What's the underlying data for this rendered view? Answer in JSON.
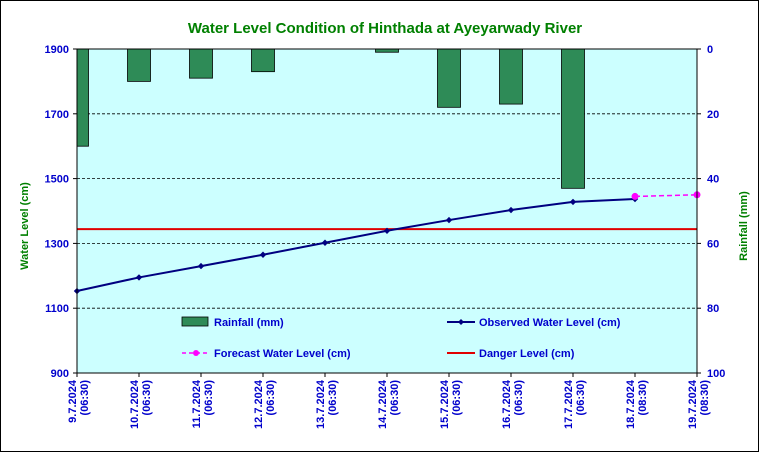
{
  "chart_data": {
    "type": "bar+line",
    "title": "Water Level Condition of Hinthada at Ayeyarwady River",
    "categories": [
      [
        "9.7.2024",
        "(06:30)"
      ],
      [
        "10.7.2024",
        "(06:30)"
      ],
      [
        "11.7.2024",
        "(06:30)"
      ],
      [
        "12.7.2024",
        "(06:30)"
      ],
      [
        "13.7.2024",
        "(06:30)"
      ],
      [
        "14.7.2024",
        "(06:30)"
      ],
      [
        "15.7.2024",
        "(06:30)"
      ],
      [
        "16.7.2024",
        "(06:30)"
      ],
      [
        "17.7.2024",
        "(06:30)"
      ],
      [
        "18.7.2024",
        "(08:30)"
      ],
      [
        "19.7.2024",
        "(08:30)"
      ]
    ],
    "left_axis": {
      "label": "Water Level (cm)",
      "min": 900,
      "max": 1900,
      "ticks": [
        900,
        1100,
        1300,
        1500,
        1700,
        1900
      ],
      "color": "#0000cc"
    },
    "right_axis": {
      "label": "Rainfall (mm)",
      "min": 0,
      "max": 100,
      "inverted": true,
      "ticks": [
        0,
        20,
        40,
        60,
        80,
        100
      ],
      "color": "#0000cc"
    },
    "series": [
      {
        "name": "Rainfall (mm)",
        "kind": "bar",
        "axis": "right",
        "values": [
          30,
          10,
          9,
          7,
          null,
          1,
          18,
          17,
          43,
          null,
          null
        ],
        "color": "#2e8b57"
      },
      {
        "name": "Observed Water Level (cm)",
        "kind": "line",
        "axis": "left",
        "values": [
          1153,
          1195,
          1230,
          1265,
          1302,
          1339,
          1372,
          1403,
          1428,
          1437,
          null
        ],
        "color": "#000080"
      },
      {
        "name": "Forecast Water Level (cm)",
        "kind": "dashed-line",
        "axis": "left",
        "values": [
          null,
          null,
          null,
          null,
          null,
          null,
          null,
          null,
          null,
          1445,
          1450
        ],
        "color": "#ff00ff"
      },
      {
        "name": "Danger Level (cm)",
        "kind": "hline",
        "axis": "left",
        "value": 1344,
        "color": "#e00000"
      }
    ],
    "legend_order": [
      "Rainfall (mm)",
      "Observed Water Level (cm)",
      "Forecast Water Level (cm)",
      "Danger Level (cm)"
    ],
    "legend_placement": "inside-bottom",
    "grid": "horizontal-dashed",
    "plot_background": "#ccffff",
    "title_color": "#008000",
    "axis_label_color": "#008000"
  }
}
